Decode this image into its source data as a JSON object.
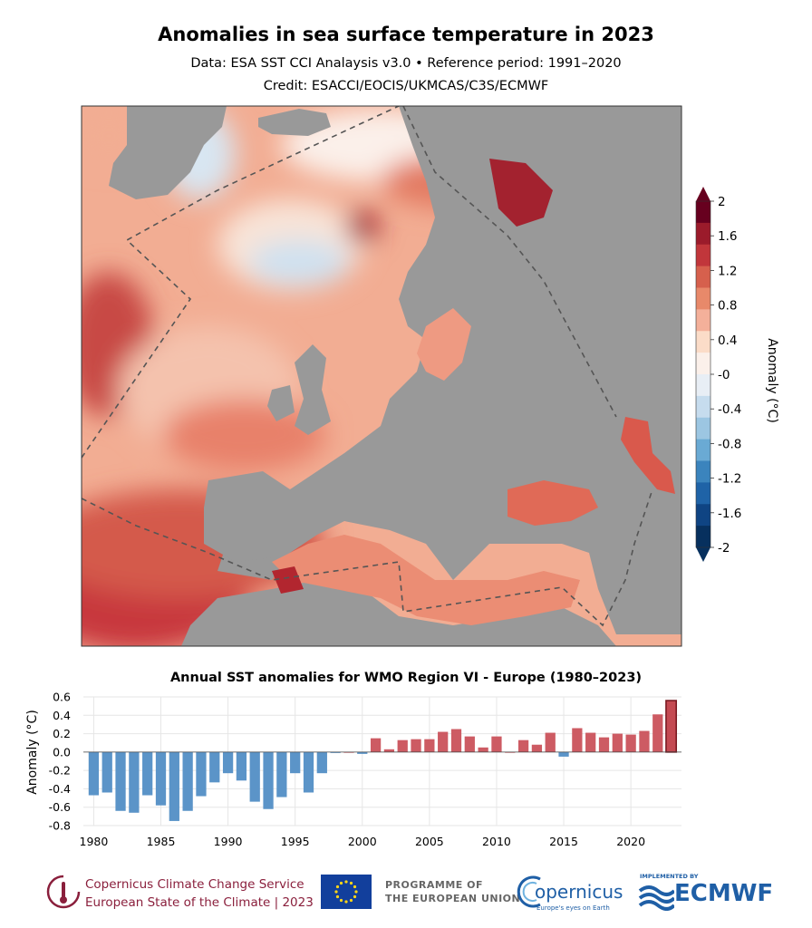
{
  "title": "Anomalies in sea surface temperature in 2023",
  "subtitle": "Data: ESA SST CCI Analaysis v3.0 • Reference period: 1991–2020",
  "credit": "Credit: ESACCI/EOCIS/UKMCAS/C3S/ECMWF",
  "colorbar": {
    "label": "Anomaly (°C)",
    "ticks": [
      "2",
      "1.6",
      "1.2",
      "0.8",
      "0.4",
      "-0",
      "-0.4",
      "-0.8",
      "-1.2",
      "-1.6",
      "-2"
    ],
    "colors": [
      "#67001f",
      "#9b1b2b",
      "#c1363b",
      "#d6604d",
      "#e8896a",
      "#f4b09a",
      "#fbdcc8",
      "#fbf0ea",
      "#e8eef5",
      "#c6dcee",
      "#9cc6e2",
      "#6aaad4",
      "#3b84bd",
      "#1f63a7",
      "#0f4483",
      "#07305e"
    ]
  },
  "colors": {
    "land": "#999999",
    "bar_negative": "#5b94c8",
    "bar_positive": "#cd5b63",
    "bar_2023": "#c44a52",
    "footer_red": "#8a1f3c",
    "footer_blue": "#1f5fa6"
  },
  "chart_data": {
    "type": "bar",
    "title": "Annual SST anomalies for WMO Region VI - Europe (1980–2023)",
    "ylabel": "Anomaly (°C)",
    "xlabel": "",
    "ylim": [
      -0.8,
      0.6
    ],
    "y_ticks": [
      "0.6",
      "0.4",
      "0.2",
      "0.0",
      "-0.2",
      "-0.4",
      "-0.6",
      "-0.8"
    ],
    "x_ticks": [
      "1980",
      "1985",
      "1990",
      "1995",
      "2000",
      "2005",
      "2010",
      "2015",
      "2020"
    ],
    "grid": true,
    "categories": [
      1980,
      1981,
      1982,
      1983,
      1984,
      1985,
      1986,
      1987,
      1988,
      1989,
      1990,
      1991,
      1992,
      1993,
      1994,
      1995,
      1996,
      1997,
      1998,
      1999,
      2000,
      2001,
      2002,
      2003,
      2004,
      2005,
      2006,
      2007,
      2008,
      2009,
      2010,
      2011,
      2012,
      2013,
      2014,
      2015,
      2016,
      2017,
      2018,
      2019,
      2020,
      2021,
      2022,
      2023
    ],
    "values": [
      -0.47,
      -0.44,
      -0.64,
      -0.66,
      -0.47,
      -0.58,
      -0.75,
      -0.64,
      -0.48,
      -0.33,
      -0.23,
      -0.31,
      -0.54,
      -0.62,
      -0.49,
      -0.23,
      -0.44,
      -0.23,
      -0.01,
      0.0,
      -0.02,
      0.15,
      0.03,
      0.13,
      0.14,
      0.14,
      0.22,
      0.25,
      0.17,
      0.05,
      0.17,
      0.0,
      0.13,
      0.08,
      0.21,
      -0.05,
      0.26,
      0.21,
      0.16,
      0.2,
      0.19,
      0.23,
      0.41,
      0.56
    ]
  },
  "footer": {
    "c3s_line1": "Copernicus Climate Change Service",
    "c3s_line2": "European State of the Climate | 2023",
    "programme_line1": "PROGRAMME OF",
    "programme_line2": "THE EUROPEAN UNION",
    "copernicus": "opernicus",
    "copernicus_tagline": "Europe's eyes on Earth",
    "implemented_by": "IMPLEMENTED BY",
    "ecmwf": "ECMWF"
  }
}
